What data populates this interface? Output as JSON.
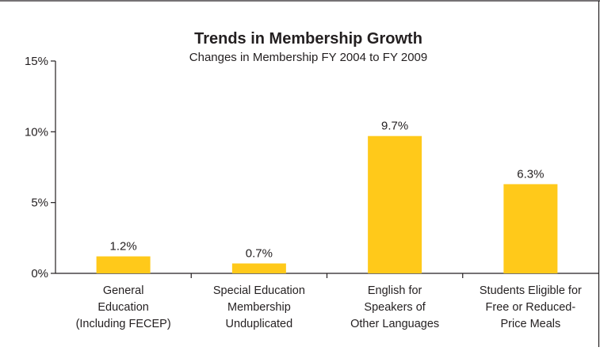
{
  "colors": {
    "bar": "#FFC91A",
    "frame": "#231F20",
    "text": "#231F20",
    "background": "#FFFFFF"
  },
  "chart_data": {
    "type": "bar",
    "title": "Trends in Membership Growth",
    "subtitle": "Changes in Membership FY 2004 to FY 2009",
    "xlabel": "",
    "ylabel": "",
    "ylim": [
      0,
      15
    ],
    "yticks": [
      0,
      5,
      10,
      15
    ],
    "ytick_labels": [
      "0%",
      "5%",
      "10%",
      "15%"
    ],
    "grid": false,
    "legend": "none",
    "categories": [
      [
        "General",
        "Education",
        "(Including FECEP)"
      ],
      [
        "Special Education",
        "Membership",
        "Unduplicated"
      ],
      [
        "English for",
        "Speakers of",
        "Other Languages"
      ],
      [
        "Students Eligible for",
        "Free or Reduced-",
        "Price Meals"
      ]
    ],
    "values": [
      1.2,
      0.7,
      9.7,
      6.3
    ],
    "data_labels": [
      "1.2%",
      "0.7%",
      "9.7%",
      "6.3%"
    ]
  }
}
